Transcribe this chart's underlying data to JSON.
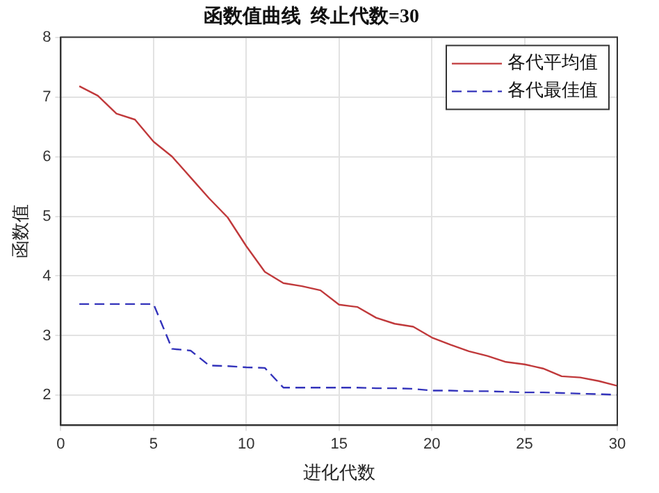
{
  "chart_data": {
    "type": "line",
    "title": "函数值曲线  终止代数=30",
    "xlabel": "进化代数",
    "ylabel": "函数值",
    "x": [
      1,
      2,
      3,
      4,
      5,
      6,
      7,
      8,
      9,
      10,
      11,
      12,
      13,
      14,
      15,
      16,
      17,
      18,
      19,
      20,
      21,
      22,
      23,
      24,
      25,
      26,
      27,
      28,
      29,
      30
    ],
    "series": [
      {
        "name": "各代平均值",
        "color": "#c0393b",
        "line_style": "solid",
        "values": [
          7.18,
          7.02,
          6.72,
          6.62,
          6.25,
          6.0,
          5.65,
          5.3,
          4.98,
          4.5,
          4.07,
          3.88,
          3.83,
          3.76,
          3.52,
          3.48,
          3.3,
          3.2,
          3.15,
          2.97,
          2.85,
          2.74,
          2.66,
          2.56,
          2.52,
          2.45,
          2.32,
          2.3,
          2.24,
          2.16
        ]
      },
      {
        "name": "各代最佳值",
        "color": "#3333bb",
        "line_style": "dashed",
        "values": [
          3.53,
          3.53,
          3.53,
          3.53,
          3.53,
          2.78,
          2.75,
          2.5,
          2.49,
          2.47,
          2.46,
          2.13,
          2.13,
          2.13,
          2.13,
          2.13,
          2.12,
          2.12,
          2.11,
          2.08,
          2.08,
          2.07,
          2.07,
          2.06,
          2.05,
          2.05,
          2.04,
          2.03,
          2.02,
          2.01
        ]
      }
    ],
    "xlim": [
      0,
      30
    ],
    "xticks": [
      0,
      5,
      10,
      15,
      20,
      25,
      30
    ],
    "ylim": [
      1.5,
      8
    ],
    "yticks": [
      2,
      3,
      4,
      5,
      6,
      7,
      8
    ],
    "grid": true,
    "legend": "top right",
    "marker": "none"
  }
}
